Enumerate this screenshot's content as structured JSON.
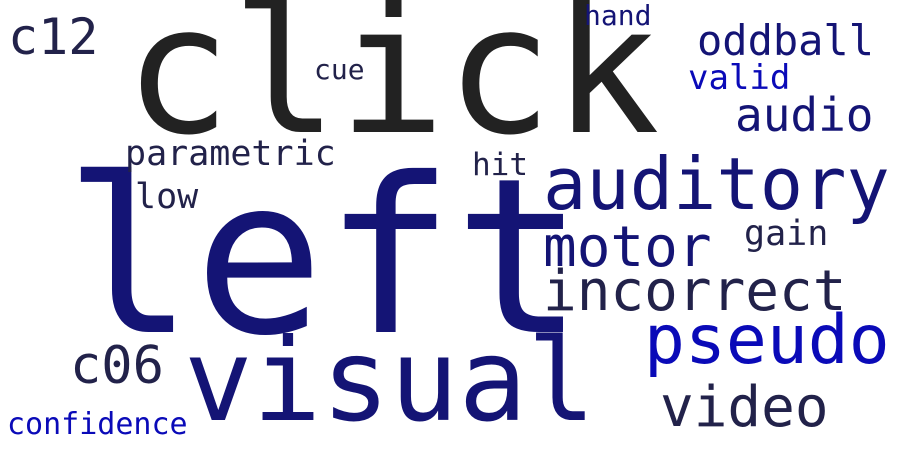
{
  "colors": {
    "background": "#ffffff",
    "dark": "#222222",
    "navy": "#1a1a6e",
    "deep_navy": "#141475",
    "blue": "#0a0ab8",
    "ink": "#22224a"
  },
  "words": {
    "left": "left",
    "click": "click",
    "visual": "visual",
    "auditory": "auditory",
    "pseudo": "pseudo",
    "motor": "motor",
    "incorrect": "incorrect",
    "video": "video",
    "audio": "audio",
    "oddball": "oddball",
    "c12": "c12",
    "c06": "c06",
    "parametric": "parametric",
    "valid": "valid",
    "hand": "hand",
    "cue": "cue",
    "hit": "hit",
    "low": "low",
    "gain": "gain",
    "confidence": "confidence"
  }
}
